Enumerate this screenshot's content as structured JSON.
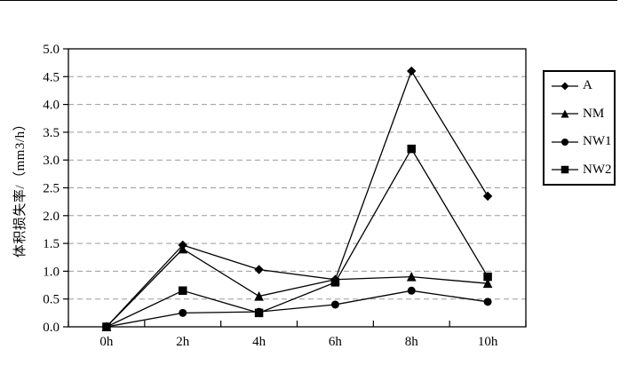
{
  "chart_data": {
    "type": "line",
    "title": "",
    "categories": [
      "0h",
      "2h",
      "4h",
      "6h",
      "8h",
      "10h"
    ],
    "series": [
      {
        "name": "A",
        "marker": "diamond",
        "color": "#000000",
        "values": [
          0.0,
          1.47,
          1.03,
          0.85,
          4.6,
          2.35
        ]
      },
      {
        "name": "NM",
        "marker": "triangle",
        "color": "#000000",
        "values": [
          0.0,
          1.4,
          0.55,
          0.85,
          0.9,
          0.78
        ]
      },
      {
        "name": "NW1",
        "marker": "circle",
        "color": "#000000",
        "values": [
          0.0,
          0.25,
          0.27,
          0.4,
          0.65,
          0.45
        ]
      },
      {
        "name": "NW2",
        "marker": "square",
        "color": "#000000",
        "values": [
          0.0,
          0.65,
          0.25,
          0.8,
          3.2,
          0.9
        ]
      }
    ],
    "xlabel": "",
    "ylabel": "体积损失率/（mm3/h）",
    "ylim": [
      0,
      5
    ],
    "ytick_step": 0.5,
    "ytick_decimals": 1,
    "grid": "horizontal-dashed",
    "gridline_color": "#9a9a9a",
    "axis_color": "#000000",
    "background_color": "#ffffff",
    "legend_position": "right",
    "legend_entries": [
      "A",
      "NM",
      "NW1",
      "NW2"
    ]
  }
}
